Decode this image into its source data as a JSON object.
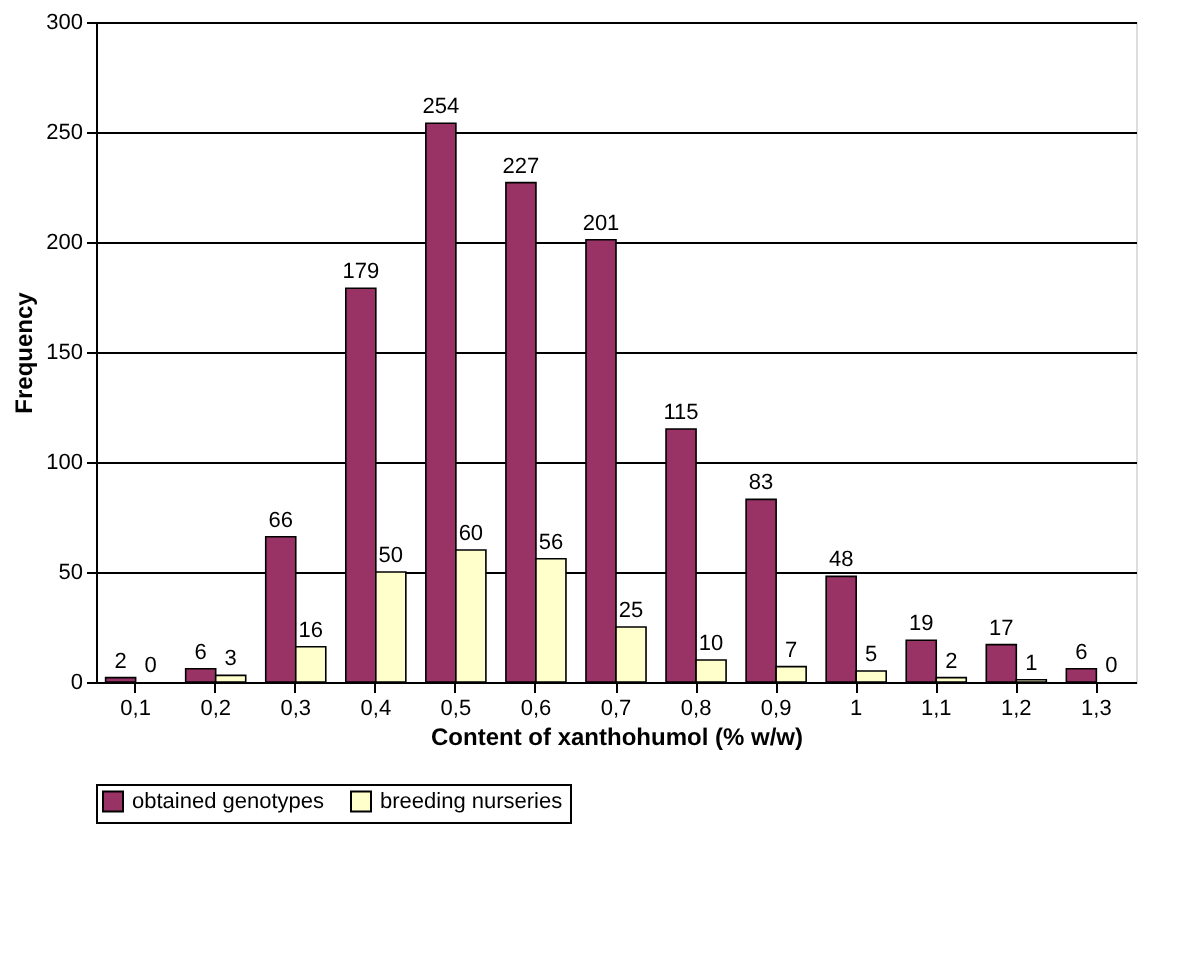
{
  "chart_data": {
    "type": "bar",
    "xlabel": "Content of xanthohumol (% w/w)",
    "ylabel": "Frequency",
    "categories": [
      "0,1",
      "0,2",
      "0,3",
      "0,4",
      "0,5",
      "0,6",
      "0,7",
      "0,8",
      "0,9",
      "1",
      "1,1",
      "1,2",
      "1,3"
    ],
    "series": [
      {
        "name": "obtained genotypes",
        "color": "#993366",
        "values": [
          2,
          6,
          66,
          179,
          254,
          227,
          201,
          115,
          83,
          48,
          19,
          17,
          6
        ]
      },
      {
        "name": "breeding nurseries",
        "color": "#ffffcc",
        "values": [
          0,
          3,
          16,
          50,
          60,
          56,
          25,
          10,
          7,
          5,
          2,
          1,
          0
        ]
      }
    ],
    "ylim": [
      0,
      300
    ],
    "yticks": [
      0,
      50,
      100,
      150,
      200,
      250,
      300
    ],
    "grid": "y",
    "legend": "bottom",
    "data_labels": true
  }
}
